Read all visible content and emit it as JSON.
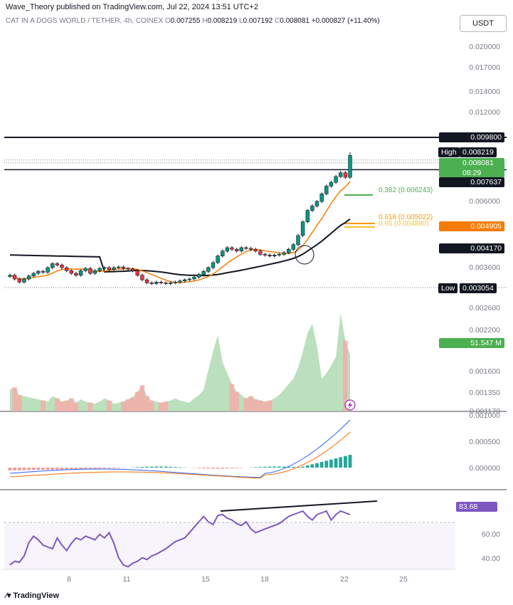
{
  "header": {
    "publisher": "Wave_Theory published on TradingView.com, Jul 22, 2024 13:51 UTC+2",
    "symbol": "CAT IN A DOGS WORLD / TETHER, 4h, COINEX",
    "o_label": "O",
    "o_value": "0.007255",
    "h_label": "H",
    "h_value": "0.008219",
    "l_label": "L",
    "l_value": "0.007192",
    "c_label": "C",
    "c_value": "0.008081",
    "change": "+0.000827 (+11.40%)"
  },
  "currency_button": "USDT",
  "footer": "TradingView",
  "colors": {
    "up": "#089981",
    "down": "#f23645",
    "fib382": "#4caf50",
    "fib618": "#ff9800",
    "rsi": "#7e57c2",
    "ema": "#f57c00"
  },
  "price_axis": {
    "ticks": [
      "0.020000",
      "0.017000",
      "0.014000",
      "0.012000",
      "0.006000",
      "0.003600"
    ],
    "tags": {
      "resistance": "0.009800",
      "high_label": "High",
      "high": "0.008219",
      "last": "0.008081",
      "countdown": "08:29",
      "support": "0.007637",
      "ema_orange": "0.004905",
      "ema_black": "0.004170",
      "low_label": "Low",
      "low": "0.003054"
    },
    "fib_382": "0.382 (0.006243)",
    "fib_618": "0.618 (0.005022)",
    "fib_65": "0.65 (0.004880)"
  },
  "volume_axis": {
    "ticks": [
      "0.002600",
      "0.002200",
      "0.001600",
      "0.001350",
      "0.001170"
    ],
    "tag": "51.547 M"
  },
  "macd_axis": {
    "ticks": [
      "0.001000",
      "0.000500",
      "0.000000"
    ]
  },
  "rsi_axis": {
    "ticks": [
      "60.00",
      "40.00"
    ],
    "tag": "83.68"
  },
  "x_axis": {
    "labels": [
      "8",
      "11",
      "15",
      "18",
      "22",
      "25"
    ]
  },
  "chart_data": {
    "type": "candlestick",
    "title": "CAT IN A DOGS WORLD / TETHER, 4h, COINEX",
    "ohlc_last": {
      "open": 0.007255,
      "high": 0.008219,
      "low": 0.007192,
      "close": 0.008081
    },
    "dates_jul_2024": [
      "8",
      "11",
      "15",
      "18",
      "22",
      "25"
    ],
    "horizontal_levels": {
      "resistance": 0.0098,
      "support": 0.007637,
      "high": 0.008219,
      "low": 0.003054
    },
    "fibonacci": [
      {
        "level": 0.382,
        "price": 0.006243
      },
      {
        "level": 0.618,
        "price": 0.005022
      },
      {
        "level": 0.65,
        "price": 0.00488
      }
    ],
    "moving_averages": [
      {
        "color": "#f57c00",
        "last": 0.004905
      },
      {
        "color": "#131722",
        "last": 0.00417
      }
    ],
    "close": [
      0.0034,
      0.0033,
      0.00322,
      0.0033,
      0.00338,
      0.00345,
      0.0035,
      0.00348,
      0.0036,
      0.00372,
      0.00368,
      0.0036,
      0.00352,
      0.00345,
      0.0034,
      0.00352,
      0.00358,
      0.00345,
      0.00352,
      0.00358,
      0.0036,
      0.00355,
      0.0036,
      0.00362,
      0.00358,
      0.00356,
      0.00352,
      0.0034,
      0.00328,
      0.0032,
      0.00318,
      0.00322,
      0.0032,
      0.00318,
      0.0032,
      0.00322,
      0.00325,
      0.00328,
      0.0033,
      0.00335,
      0.00342,
      0.0035,
      0.0036,
      0.00375,
      0.00395,
      0.0041,
      0.0042,
      0.00415,
      0.0041,
      0.0042,
      0.00418,
      0.00415,
      0.0041,
      0.004,
      0.00398,
      0.00395,
      0.00398,
      0.004,
      0.00405,
      0.00415,
      0.0043,
      0.0046,
      0.0051,
      0.0056,
      0.0058,
      0.006,
      0.0064,
      0.0068,
      0.007,
      0.0073,
      0.0075,
      0.00726,
      0.00808
    ],
    "volume_millions": [
      20,
      22,
      15,
      14,
      13,
      12,
      11,
      10,
      9,
      14,
      12,
      9,
      10,
      12,
      8,
      11,
      9,
      8,
      7,
      9,
      12,
      10,
      7,
      8,
      9,
      11,
      13,
      18,
      24,
      14,
      10,
      9,
      8,
      9,
      10,
      12,
      10,
      9,
      8,
      12,
      15,
      20,
      38,
      55,
      70,
      45,
      35,
      25,
      18,
      15,
      12,
      14,
      11,
      10,
      9,
      10,
      12,
      15,
      20,
      25,
      30,
      40,
      55,
      72,
      80,
      60,
      30,
      35,
      42,
      50,
      90,
      65,
      51.547
    ],
    "rsi_last": 83.68
  }
}
